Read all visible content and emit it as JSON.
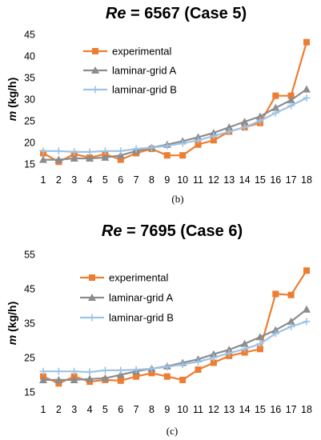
{
  "chart_data": [
    {
      "type": "line",
      "title_var": "Re",
      "title_rest": " = 6567 (Case 5)",
      "ylabel_var": "m",
      "ylabel_rest": " (kg/h)",
      "caption": "(b)",
      "ylim": [
        15,
        45
      ],
      "yticks": [
        "15",
        "20",
        "25",
        "30",
        "35",
        "40",
        "45"
      ],
      "x": [
        "1",
        "2",
        "3",
        "4",
        "5",
        "6",
        "7",
        "8",
        "9",
        "10",
        "11",
        "12",
        "13",
        "14",
        "15",
        "16",
        "17",
        "18"
      ],
      "legend_position": "top-left",
      "series": [
        {
          "name": "experimental",
          "color": "#ED7D31",
          "marker": "square",
          "values": [
            17.5,
            15.5,
            17.3,
            16.5,
            17.3,
            16.0,
            17.5,
            18.5,
            17.0,
            17.0,
            19.5,
            20.5,
            22.5,
            23.5,
            24.5,
            30.8,
            30.8,
            43.2
          ]
        },
        {
          "name": "laminar-grid A",
          "color": "#8C8C8C",
          "marker": "triangle",
          "values": [
            16.0,
            16.0,
            16.3,
            16.3,
            16.5,
            17.0,
            18.0,
            18.8,
            19.5,
            20.3,
            21.2,
            22.2,
            23.5,
            24.8,
            26.0,
            28.0,
            29.8,
            32.3
          ]
        },
        {
          "name": "laminar-grid B",
          "color": "#9DC3E6",
          "marker": "cross",
          "values": [
            18.0,
            18.0,
            17.8,
            17.8,
            18.0,
            18.0,
            18.5,
            18.8,
            19.2,
            19.8,
            20.5,
            21.5,
            22.5,
            23.5,
            25.0,
            26.8,
            28.5,
            30.3
          ]
        }
      ]
    },
    {
      "type": "line",
      "title_var": "Re",
      "title_rest": " = 7695 (Case 6)",
      "ylabel_var": "m",
      "ylabel_rest": " (kg/h)",
      "caption": "(c)",
      "ylim": [
        15,
        55
      ],
      "yticks": [
        "15",
        "25",
        "35",
        "45",
        "55"
      ],
      "x": [
        "1",
        "2",
        "3",
        "4",
        "5",
        "6",
        "7",
        "8",
        "9",
        "10",
        "11",
        "12",
        "13",
        "14",
        "15",
        "16",
        "17",
        "18"
      ],
      "legend_position": "top-left",
      "series": [
        {
          "name": "experimental",
          "color": "#ED7D31",
          "marker": "square",
          "values": [
            19.5,
            17.5,
            19.5,
            18.0,
            18.5,
            18.3,
            19.5,
            20.5,
            19.5,
            18.5,
            21.5,
            23.5,
            25.5,
            26.5,
            27.5,
            43.5,
            43.2,
            50.3
          ]
        },
        {
          "name": "laminar-grid A",
          "color": "#8C8C8C",
          "marker": "triangle",
          "values": [
            18.5,
            18.5,
            18.5,
            18.8,
            19.0,
            20.0,
            21.0,
            21.8,
            22.5,
            23.5,
            24.5,
            26.0,
            27.3,
            29.0,
            31.0,
            33.0,
            35.5,
            39.0
          ]
        },
        {
          "name": "laminar-grid B",
          "color": "#9DC3E6",
          "marker": "cross",
          "values": [
            21.0,
            21.0,
            21.0,
            20.8,
            21.3,
            21.3,
            21.5,
            21.8,
            22.3,
            23.0,
            23.8,
            25.0,
            26.3,
            27.5,
            29.0,
            32.0,
            34.0,
            35.5
          ]
        }
      ]
    }
  ]
}
